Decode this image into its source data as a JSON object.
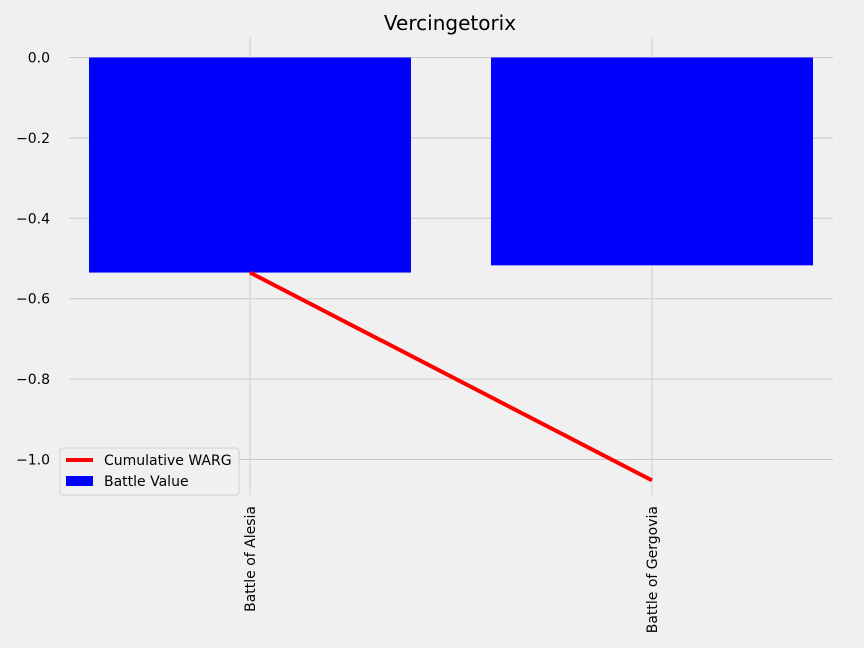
{
  "chart_data": {
    "type": "bar",
    "title": "Vercingetorix",
    "xlabel": "",
    "ylabel": "",
    "categories": [
      "Battle of Alesia",
      "Battle of Gergovia"
    ],
    "series": [
      {
        "name": "Battle Value",
        "type": "bar",
        "values": [
          -0.535,
          -0.517
        ],
        "color": "#0000ff"
      },
      {
        "name": "Cumulative WARG",
        "type": "line",
        "values": [
          -0.535,
          -1.052
        ],
        "color": "#ff0000"
      }
    ],
    "ylim": [
      -1.05,
      0.0
    ],
    "y_ticks": [
      0.0,
      -0.2,
      -0.4,
      -0.6,
      -0.8,
      -1.0
    ],
    "y_tick_labels": [
      "0.0",
      "−0.2",
      "−0.4",
      "−0.6",
      "−0.8",
      "−1.0"
    ],
    "grid": true,
    "legend_position": "lower-left",
    "x_tick_rotation": "vertical",
    "background": "#f0f0f0",
    "grid_color": "#cbcbcb"
  }
}
